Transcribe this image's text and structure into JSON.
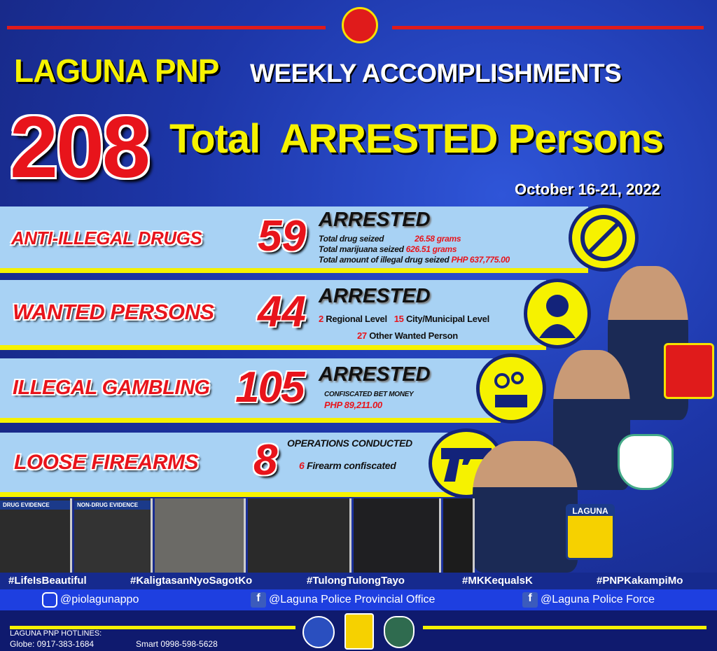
{
  "header": {
    "org": "LAGUNA PNP",
    "subtitle": "WEEKLY ACCOMPLISHMENTS",
    "total": "208",
    "total_label": "Total  ARRESTED Persons",
    "date": "October 16-21, 2022"
  },
  "rows": [
    {
      "label": "ANTI-ILLEGAL DRUGS",
      "count": "59",
      "status": "ARRESTED",
      "icon": "no-drugs-icon",
      "details": [
        {
          "text": "Total drug seized",
          "value": "26.58 grams"
        },
        {
          "text": "Total marijuana seized",
          "value": "626.51 grams"
        },
        {
          "text": "Total amount of illegal drug seized",
          "value": "PHP 637,775.00"
        }
      ]
    },
    {
      "label": "WANTED PERSONS",
      "count": "44",
      "status": "ARRESTED",
      "icon": "person-silhouette-icon",
      "details": [
        {
          "value": "2",
          "text": "Regional Level"
        },
        {
          "value": "15",
          "text": "City/Municipal Level"
        },
        {
          "value": "27",
          "text": "Other Wanted Person"
        }
      ]
    },
    {
      "label": "ILLEGAL GAMBLING",
      "count": "105",
      "status": "ARRESTED",
      "icon": "gambling-icon",
      "details": [
        {
          "text": "CONFISCATED BET MONEY",
          "value": "PHP 89,211.00"
        }
      ]
    },
    {
      "label": "LOOSE FIREARMS",
      "count": "8",
      "status": "OPERATIONS CONDUCTED",
      "icon": "handgun-icon",
      "details": [
        {
          "value": "6",
          "text": "Firearm confiscated"
        }
      ]
    }
  ],
  "photos": {
    "drug_evidence": "DRUG EVIDENCE",
    "non_drug_evidence": "NON-DRUG EVIDENCE"
  },
  "hashtags": [
    "#LifeIsBeautiful",
    "#KaligtasanNyoSagotKo",
    "#TulongTulongTayo",
    "#MKKequalsK",
    "#PNPKakampiMo"
  ],
  "social": {
    "instagram": "@piolagunappo",
    "facebook1": "@Laguna Police Provincial Office",
    "facebook2": "@Laguna Police Force"
  },
  "footer": {
    "hotlines_title": "LAGUNA PNP HOTLINES:",
    "globe": "Globe: 0917-383-1684",
    "smart": "Smart 0998-598-5628",
    "laguna_badge": "LAGUNA"
  },
  "colors": {
    "background": "#1d36a8",
    "accent_yellow": "#f6f200",
    "accent_red": "#e8141b",
    "band": "#a8d2f4"
  }
}
